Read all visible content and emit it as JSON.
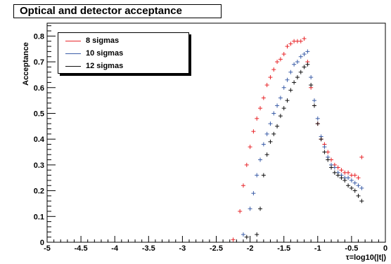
{
  "title": "Optical and detector acceptance",
  "colors": {
    "8 sigmas": "#e8262a",
    "10 sigmas": "#3c5ea8",
    "12 sigmas": "#111111"
  },
  "chart_data": {
    "type": "scatter",
    "title": "Optical and detector acceptance",
    "xlabel": "τ=log10(|t|)",
    "ylabel": "Acceptance",
    "xlim": [
      -5,
      0
    ],
    "ylim": [
      0,
      0.85
    ],
    "x_ticks": [
      "-5",
      "-4.5",
      "-4",
      "-3.5",
      "-3",
      "-2.5",
      "-2",
      "-1.5",
      "-1",
      "-0.5",
      "0"
    ],
    "y_ticks": [
      "0",
      "0.1",
      "0.2",
      "0.3",
      "0.4",
      "0.5",
      "0.6",
      "0.7",
      "0.8"
    ],
    "legend_position": "top-left",
    "series": [
      {
        "name": "8 sigmas",
        "color": "#e8262a",
        "x": [
          -2.25,
          -2.15,
          -2.1,
          -2.05,
          -2.0,
          -1.95,
          -1.9,
          -1.85,
          -1.8,
          -1.75,
          -1.7,
          -1.65,
          -1.6,
          -1.55,
          -1.5,
          -1.45,
          -1.4,
          -1.35,
          -1.3,
          -1.25,
          -1.2,
          -1.15,
          -1.1,
          -1.05,
          -1.0,
          -0.95,
          -0.9,
          -0.85,
          -0.8,
          -0.75,
          -0.7,
          -0.65,
          -0.6,
          -0.55,
          -0.5,
          -0.45,
          -0.4,
          -0.35
        ],
        "y": [
          0.01,
          0.12,
          0.22,
          0.3,
          0.37,
          0.43,
          0.48,
          0.52,
          0.56,
          0.61,
          0.64,
          0.67,
          0.7,
          0.71,
          0.73,
          0.76,
          0.77,
          0.78,
          0.78,
          0.78,
          0.79,
          0.7,
          0.6,
          0.53,
          0.46,
          0.4,
          0.38,
          0.35,
          0.32,
          0.3,
          0.29,
          0.28,
          0.27,
          0.27,
          0.26,
          0.26,
          0.25,
          0.33
        ],
        "err": [
          0,
          0,
          0,
          0,
          0,
          0,
          0,
          0,
          0,
          0,
          0,
          0,
          0,
          0,
          0,
          0,
          0,
          0,
          0,
          0,
          0,
          0,
          0.01,
          0.01,
          0.01,
          0.01,
          0.01,
          0.01,
          0.02,
          0.02,
          0.02,
          0.02,
          0.03,
          0.03,
          0.04,
          0.05,
          0.08,
          0.14
        ]
      },
      {
        "name": "10 sigmas",
        "color": "#3c5ea8",
        "x": [
          -2.1,
          -2.0,
          -1.95,
          -1.9,
          -1.85,
          -1.8,
          -1.75,
          -1.7,
          -1.65,
          -1.6,
          -1.55,
          -1.5,
          -1.45,
          -1.4,
          -1.35,
          -1.3,
          -1.25,
          -1.2,
          -1.15,
          -1.1,
          -1.05,
          -1.0,
          -0.95,
          -0.9,
          -0.85,
          -0.8,
          -0.75,
          -0.7,
          -0.65,
          -0.6,
          -0.55,
          -0.5,
          -0.45,
          -0.4,
          -0.35
        ],
        "y": [
          0.03,
          0.13,
          0.19,
          0.26,
          0.32,
          0.38,
          0.42,
          0.46,
          0.5,
          0.53,
          0.56,
          0.6,
          0.63,
          0.66,
          0.69,
          0.7,
          0.72,
          0.73,
          0.74,
          0.64,
          0.55,
          0.48,
          0.41,
          0.37,
          0.33,
          0.3,
          0.29,
          0.27,
          0.26,
          0.25,
          0.25,
          0.24,
          0.23,
          0.22,
          0.21
        ],
        "err": [
          0,
          0,
          0,
          0,
          0,
          0,
          0,
          0,
          0,
          0,
          0,
          0,
          0,
          0,
          0,
          0,
          0,
          0,
          0,
          0.01,
          0.01,
          0.01,
          0.01,
          0.01,
          0.01,
          0.02,
          0.02,
          0.02,
          0.02,
          0.03,
          0.03,
          0.04,
          0.05,
          0.07,
          0.09
        ]
      },
      {
        "name": "12 sigmas",
        "color": "#111111",
        "x": [
          -2.05,
          -1.9,
          -1.85,
          -1.8,
          -1.75,
          -1.7,
          -1.65,
          -1.6,
          -1.55,
          -1.5,
          -1.45,
          -1.4,
          -1.35,
          -1.3,
          -1.25,
          -1.2,
          -1.15,
          -1.1,
          -1.05,
          -1.0,
          -0.95,
          -0.9,
          -0.85,
          -0.8,
          -0.75,
          -0.7,
          -0.65,
          -0.6,
          -0.55,
          -0.5,
          -0.45,
          -0.4,
          -0.35
        ],
        "y": [
          0.02,
          0.03,
          0.13,
          0.26,
          0.34,
          0.39,
          0.42,
          0.45,
          0.49,
          0.52,
          0.55,
          0.59,
          0.62,
          0.64,
          0.66,
          0.68,
          0.69,
          0.61,
          0.53,
          0.46,
          0.4,
          0.35,
          0.32,
          0.29,
          0.27,
          0.26,
          0.25,
          0.24,
          0.22,
          0.21,
          0.2,
          0.18,
          0.16
        ],
        "err": [
          0,
          0,
          0,
          0,
          0,
          0,
          0,
          0,
          0,
          0,
          0,
          0,
          0,
          0,
          0,
          0,
          0,
          0.01,
          0.01,
          0.01,
          0.01,
          0.01,
          0.01,
          0.02,
          0.02,
          0.02,
          0.02,
          0.03,
          0.03,
          0.04,
          0.05,
          0.06,
          0.07
        ]
      }
    ]
  }
}
